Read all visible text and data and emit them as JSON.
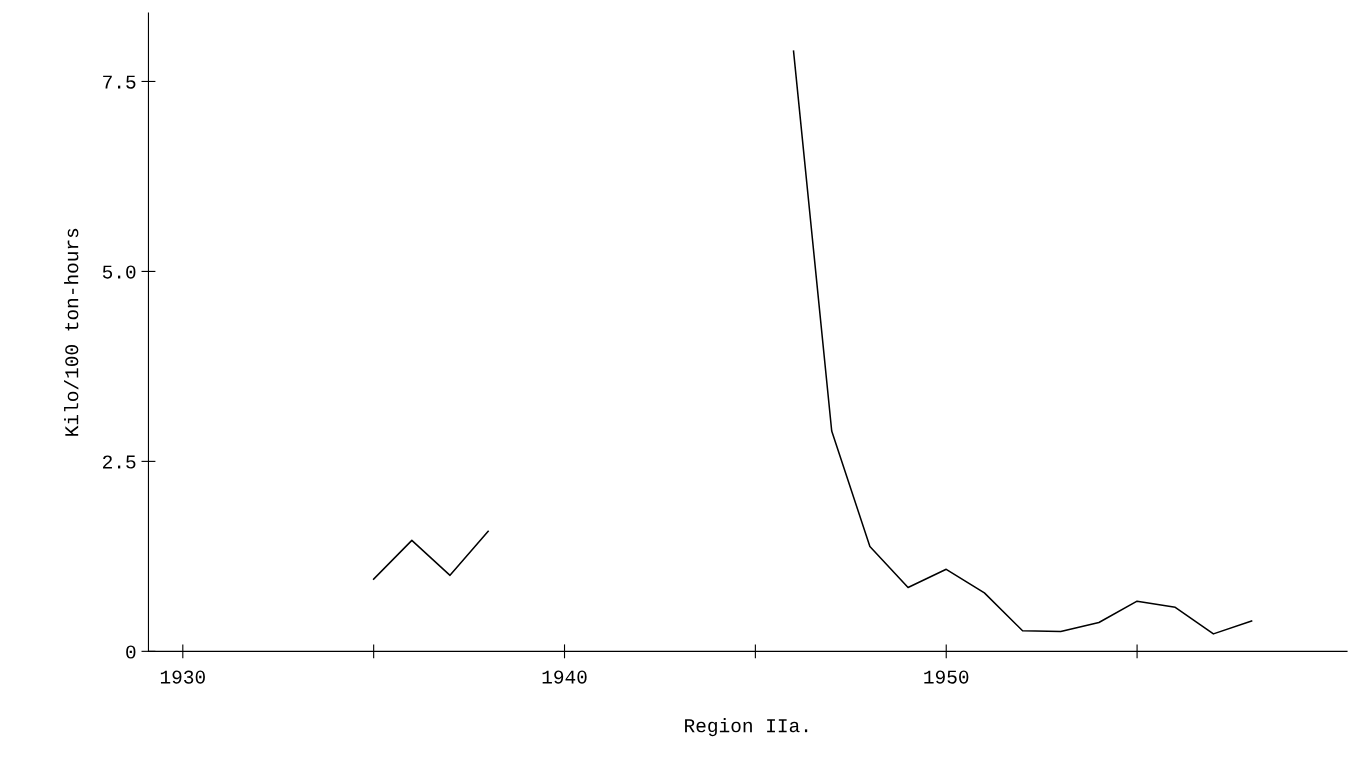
{
  "chart_data": {
    "type": "line",
    "xlabel": "Region IIa.",
    "ylabel": "Kilo/100 ton-hours",
    "x": [
      1935,
      1936,
      1937,
      1938,
      1939,
      1940,
      1941,
      1942,
      1943,
      1944,
      1945,
      1946,
      1947,
      1948,
      1949,
      1950,
      1951,
      1952,
      1953,
      1954,
      1955,
      1956,
      1957,
      1958
    ],
    "series": [
      {
        "color": "#000000",
        "values": [
          0.95,
          1.46,
          1.0,
          1.58,
          null,
          null,
          null,
          null,
          null,
          null,
          null,
          7.9,
          2.9,
          1.38,
          0.84,
          1.08,
          0.77,
          0.27,
          0.26,
          0.38,
          0.66,
          0.58,
          0.23,
          0.4
        ]
      }
    ],
    "xlim": [
      1929.1,
      1960.5
    ],
    "ylim": [
      0,
      8.4
    ],
    "xticks": [
      1930,
      {
        "value": 1935,
        "label": null
      },
      1940,
      {
        "value": 1945,
        "label": null
      },
      1950,
      {
        "value": 1955,
        "label": null
      }
    ],
    "yticks": [
      {
        "value": 0,
        "label": "0"
      },
      2.5,
      {
        "value": 5,
        "label": "5.0"
      },
      7.5
    ],
    "grid": false,
    "marker": "none",
    "line_style": "solid"
  }
}
